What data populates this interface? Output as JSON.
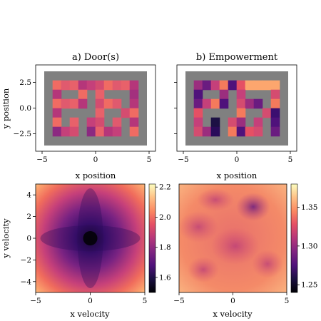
{
  "chart_data": [
    {
      "type": "heatmap",
      "title": "a) Door(s)",
      "xlabel": "x position",
      "ylabel": "y position",
      "xlim": [
        -5.6,
        5.6
      ],
      "ylim": [
        -4.2,
        4.2
      ],
      "xticks": [
        -5,
        0,
        5
      ],
      "yticks": [
        2.5,
        0.0,
        -2.5
      ],
      "xtick_labels": [
        "−5",
        "0",
        "5"
      ],
      "ytick_labels": [
        "2.5",
        "0.0",
        "−2.5"
      ],
      "colormap": "magma",
      "wall_color": "#808080",
      "description_values": "maze corridors colored mostly pink-red with purple near corridor ends"
    },
    {
      "type": "heatmap",
      "title": "b) Empowerment",
      "xlabel": "x position",
      "ylabel": "",
      "xlim": [
        -5.6,
        5.6
      ],
      "ylim": [
        -4.2,
        4.2
      ],
      "xticks": [
        -5,
        0,
        5
      ],
      "xtick_labels": [
        "−5",
        "0",
        "5"
      ],
      "colormap": "magma",
      "wall_color": "#808080"
    },
    {
      "type": "heatmap",
      "title": "",
      "xlabel": "x velocity",
      "ylabel": "y velocity",
      "xlim": [
        -5,
        5
      ],
      "ylim": [
        -5,
        5
      ],
      "xticks": [
        -5,
        0,
        5
      ],
      "yticks": [
        4,
        2,
        0,
        -2,
        -4
      ],
      "xtick_labels": [
        "−5",
        "0",
        "5"
      ],
      "ytick_labels": [
        "4",
        "2",
        "0",
        "−2",
        "−4"
      ],
      "colormap": "magma",
      "colorbar": {
        "min": 1.5,
        "max": 2.22,
        "ticks": [
          2.2,
          2.0,
          1.8,
          1.6
        ],
        "tick_labels": [
          "2.2",
          "2.0",
          "1.8",
          "1.6"
        ]
      }
    },
    {
      "type": "heatmap",
      "title": "",
      "xlabel": "x velocity",
      "ylabel": "",
      "xlim": [
        -5,
        5
      ],
      "ylim": [
        -5,
        5
      ],
      "xticks": [
        -5,
        0,
        5
      ],
      "xtick_labels": [
        "−5",
        "0",
        "5"
      ],
      "colormap": "magma",
      "colorbar": {
        "min": 1.24,
        "max": 1.38,
        "ticks": [
          1.35,
          1.3,
          1.25
        ],
        "tick_labels": [
          "1.35",
          "1.30",
          "1.25"
        ]
      }
    }
  ]
}
